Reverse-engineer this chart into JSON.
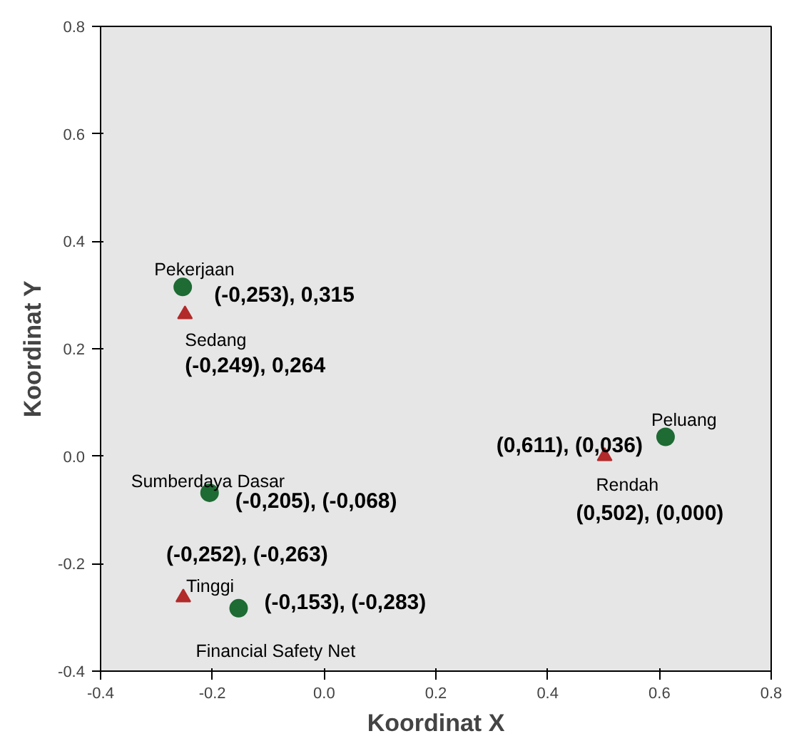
{
  "chart_data": {
    "type": "scatter",
    "xlabel": "Koordinat X",
    "ylabel": "Koordinat Y",
    "xlim": [
      -0.4,
      0.8
    ],
    "ylim": [
      -0.4,
      0.8
    ],
    "xticks": [
      -0.4,
      -0.2,
      {
        "value": 0,
        "label": "0.0"
      },
      0.2,
      0.4,
      0.6,
      0.8
    ],
    "yticks": [
      -0.4,
      -0.2,
      {
        "value": 0,
        "label": "0.0"
      },
      0.2,
      0.4,
      0.6,
      0.8
    ],
    "grid": false,
    "series": [
      {
        "color": "#1e6b34",
        "marker": "circle",
        "x": [
          -0.253,
          0.611,
          -0.205,
          -0.153
        ],
        "values": [
          0.315,
          0.036,
          -0.068,
          -0.283
        ]
      },
      {
        "color": "#b22a2a",
        "marker": "triangle",
        "x": [
          -0.249,
          0.502,
          -0.252
        ],
        "values": [
          0.264,
          0.0,
          -0.263
        ]
      }
    ],
    "annotations": [
      {
        "text": "Pekerjaan",
        "x": -0.253,
        "y": 0.315
      },
      {
        "text": "(-0,253), 0,315",
        "x": -0.253,
        "y": 0.315
      },
      {
        "text": "Sedang",
        "x": -0.249,
        "y": 0.264
      },
      {
        "text": "(-0,249), 0,264",
        "x": -0.249,
        "y": 0.264
      },
      {
        "text": "Peluang",
        "x": 0.611,
        "y": 0.036
      },
      {
        "text": "(0,611), (0,036)",
        "x": 0.611,
        "y": 0.036
      },
      {
        "text": "Rendah",
        "x": 0.502,
        "y": 0.0
      },
      {
        "text": "(0,502), (0,000)",
        "x": 0.502,
        "y": 0.0
      },
      {
        "text": "Sumberdaya Dasar",
        "x": -0.205,
        "y": -0.068
      },
      {
        "text": "(-0,205), (-0,068)",
        "x": -0.205,
        "y": -0.068
      },
      {
        "text": "Tinggi",
        "x": -0.252,
        "y": -0.263
      },
      {
        "text": "(-0,252), (-0,263)",
        "x": -0.252,
        "y": -0.263
      },
      {
        "text": "Financial Safety Net",
        "x": -0.153,
        "y": -0.283
      },
      {
        "text": "(-0,153), (-0,283)",
        "x": -0.153,
        "y": -0.283
      }
    ]
  }
}
